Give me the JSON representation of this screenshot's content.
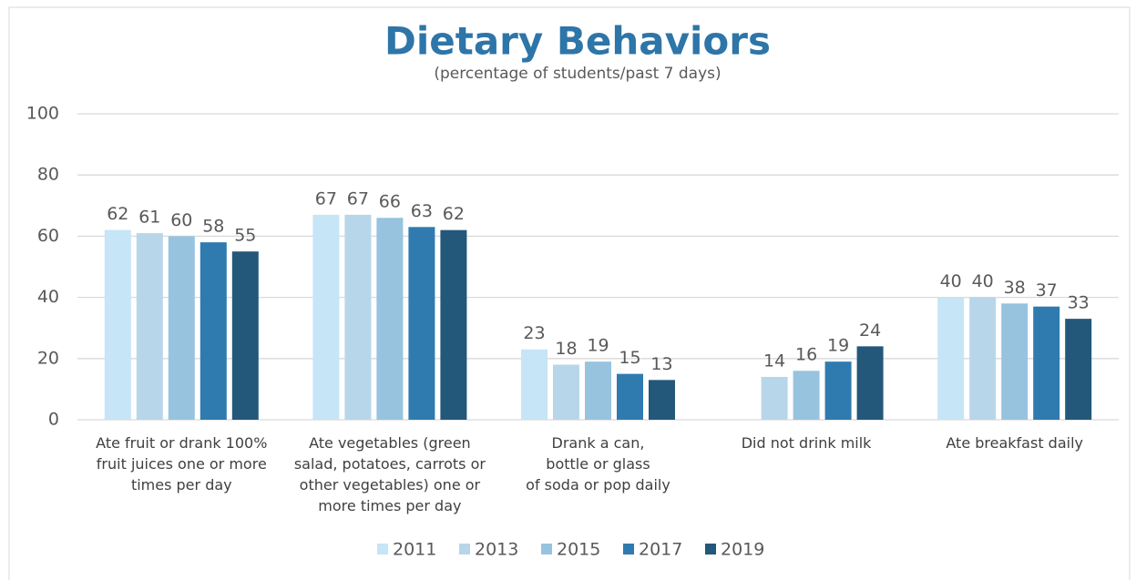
{
  "chart_data": {
    "type": "bar",
    "title": "Dietary Behaviors",
    "subtitle": "(percentage of students/past 7 days)",
    "categories": [
      "Ate fruit or drank 100%\nfruit juices one or more\ntimes per day",
      "Ate vegetables (green\nsalad, potatoes, carrots or\nother vegetables) one or\nmore times per day",
      "Drank a can,\nbottle or glass\nof soda or pop daily",
      "Did not drink milk",
      "Ate breakfast daily"
    ],
    "series": [
      {
        "name": "2011",
        "color": "#c6e5f6",
        "values": [
          62,
          67,
          23,
          null,
          40
        ]
      },
      {
        "name": "2013",
        "color": "#b8d6ea",
        "values": [
          61,
          67,
          18,
          14,
          40
        ]
      },
      {
        "name": "2015",
        "color": "#97c3df",
        "values": [
          60,
          66,
          19,
          16,
          38
        ]
      },
      {
        "name": "2017",
        "color": "#2f7bb0",
        "values": [
          58,
          63,
          15,
          19,
          37
        ]
      },
      {
        "name": "2019",
        "color": "#23587a",
        "values": [
          55,
          62,
          13,
          24,
          33
        ]
      }
    ],
    "ylim": [
      0,
      100
    ],
    "yticks": [
      0,
      20,
      40,
      60,
      80,
      100
    ],
    "grid": true,
    "legend": "bottom"
  }
}
